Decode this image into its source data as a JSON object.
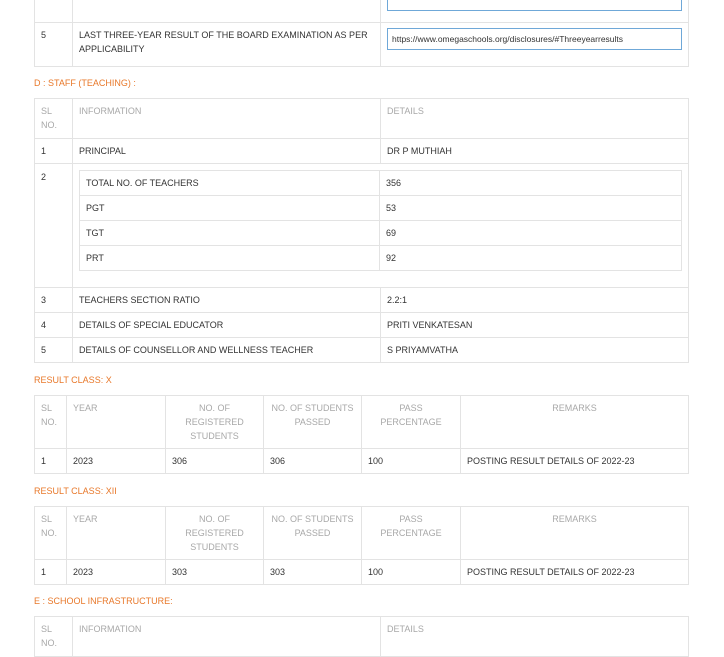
{
  "top_table": {
    "rows": [
      {
        "sl": "5",
        "info": "LAST THREE-YEAR RESULT OF THE BOARD EXAMINATION AS PER APPLICABILITY",
        "link": "https://www.omegaschools.org/disclosures/#Threeyearresults"
      }
    ]
  },
  "staff": {
    "heading": "D : STAFF (TEACHING) :",
    "headers": {
      "sl": "SL NO.",
      "info": "INFORMATION",
      "details": "DETAILS"
    },
    "principal": {
      "sl": "1",
      "info": "PRINCIPAL",
      "details": "DR P MUTHIAH"
    },
    "teachers_sl": "2",
    "teachers": [
      {
        "label": "TOTAL NO. OF TEACHERS",
        "value": "356"
      },
      {
        "label": "PGT",
        "value": "53"
      },
      {
        "label": "TGT",
        "value": "69"
      },
      {
        "label": "PRT",
        "value": "92"
      }
    ],
    "rows": [
      {
        "sl": "3",
        "info": "TEACHERS SECTION RATIO",
        "details": "2.2:1"
      },
      {
        "sl": "4",
        "info": "DETAILS OF SPECIAL EDUCATOR",
        "details": "PRITI VENKATESAN"
      },
      {
        "sl": "5",
        "info": "DETAILS OF COUNSELLOR AND WELLNESS TEACHER",
        "details": "S PRIYAMVATHA"
      }
    ]
  },
  "result_headers": {
    "sl": "SL NO.",
    "year": "YEAR",
    "registered": "NO. OF REGISTERED STUDENTS",
    "passed": "NO. OF STUDENTS PASSED",
    "pass_pct": "PASS PERCENTAGE",
    "remarks": "REMARKS"
  },
  "result_x": {
    "heading": "RESULT CLASS: X",
    "row": {
      "sl": "1",
      "year": "2023",
      "registered": "306",
      "passed": "306",
      "pass_pct": "100",
      "remarks": "POSTING RESULT DETAILS OF 2022-23"
    }
  },
  "result_xii": {
    "heading": "RESULT CLASS: XII",
    "row": {
      "sl": "1",
      "year": "2023",
      "registered": "303",
      "passed": "303",
      "pass_pct": "100",
      "remarks": "POSTING RESULT DETAILS OF 2022-23"
    }
  },
  "infra": {
    "heading": "E : SCHOOL INFRASTRUCTURE:",
    "headers": {
      "sl": "SL NO.",
      "info": "INFORMATION",
      "details": "DETAILS"
    }
  }
}
